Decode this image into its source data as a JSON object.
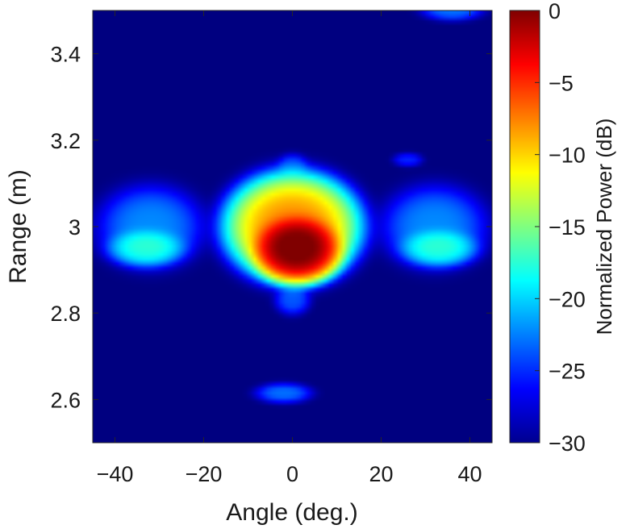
{
  "chart_data": {
    "type": "heatmap",
    "title": "",
    "xlabel": "Angle (deg.)",
    "ylabel": "Range (m)",
    "xlim": [
      -45,
      45
    ],
    "ylim": [
      2.5,
      3.5
    ],
    "x_ticks": [
      -40,
      -20,
      0,
      20,
      40
    ],
    "x_tick_labels": [
      "−40",
      "−20",
      "0",
      "20",
      "40"
    ],
    "y_ticks": [
      2.6,
      2.8,
      3.0,
      3.2,
      3.4
    ],
    "y_tick_labels": [
      "2.6",
      "2.8",
      "3",
      "3.2",
      "3.4"
    ],
    "colormap": "jet",
    "colorbar": {
      "label": "Normalized Power (dB)",
      "range": [
        -30,
        0
      ],
      "ticks": [
        0,
        -5,
        -10,
        -15,
        -20,
        -25,
        -30
      ],
      "tick_labels": [
        "0",
        "−5",
        "−10",
        "−15",
        "−20",
        "−25",
        "−30"
      ]
    },
    "floor_db": -30,
    "peaks": [
      {
        "angle": 1.0,
        "range": 2.95,
        "level_db": 0,
        "width_deg": 7.0,
        "height_m": 0.055
      },
      {
        "angle": 0.0,
        "range": 3.0,
        "level_db": -8,
        "width_deg": 11.0,
        "height_m": 0.09
      },
      {
        "angle": -33.0,
        "range": 2.95,
        "level_db": -19,
        "width_deg": 7.0,
        "height_m": 0.035
      },
      {
        "angle": 33.0,
        "range": 2.95,
        "level_db": -19,
        "width_deg": 7.0,
        "height_m": 0.035
      },
      {
        "angle": -32.0,
        "range": 3.0,
        "level_db": -23,
        "width_deg": 10.0,
        "height_m": 0.08
      },
      {
        "angle": 32.0,
        "range": 3.0,
        "level_db": -23,
        "width_deg": 10.0,
        "height_m": 0.08
      },
      {
        "angle": 0.0,
        "range": 2.83,
        "level_db": -25,
        "width_deg": 3.5,
        "height_m": 0.03
      },
      {
        "angle": 0.0,
        "range": 3.14,
        "level_db": -26,
        "width_deg": 3.0,
        "height_m": 0.025
      },
      {
        "angle": -2.0,
        "range": 2.615,
        "level_db": -24,
        "width_deg": 5.5,
        "height_m": 0.02
      },
      {
        "angle": 36.0,
        "range": 3.5,
        "level_db": -24,
        "width_deg": 6.0,
        "height_m": 0.02
      },
      {
        "angle": 26.0,
        "range": 3.155,
        "level_db": -27,
        "width_deg": 3.0,
        "height_m": 0.014
      }
    ]
  }
}
